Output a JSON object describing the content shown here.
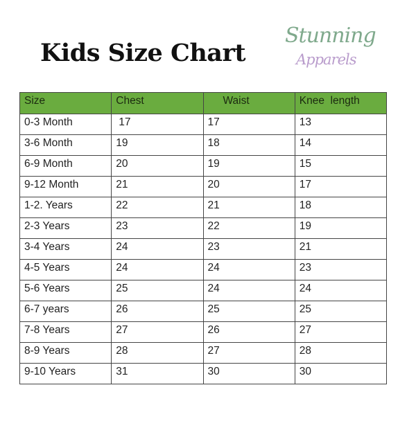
{
  "title": "Kids Size Chart",
  "logo": {
    "line1": "Stunning",
    "line2": "Apparels"
  },
  "colors": {
    "header_bg": "#6aac3f",
    "logo_green": "#7fa98c",
    "logo_purple": "#b99ccc"
  },
  "table": {
    "headers": [
      "Size",
      "Chest",
      "Waist",
      "Knee  length"
    ],
    "rows": [
      [
        "0-3 Month",
        "17",
        "17",
        "13"
      ],
      [
        "3-6 Month",
        "19",
        "18",
        "14"
      ],
      [
        "6-9 Month",
        "20",
        "19",
        "15"
      ],
      [
        "9-12 Month",
        "21",
        "20",
        "17"
      ],
      [
        "1-2. Years",
        "22",
        "21",
        "18"
      ],
      [
        "2-3 Years",
        "23",
        "22",
        "19"
      ],
      [
        "3-4 Years",
        "24",
        "23",
        "21"
      ],
      [
        "4-5 Years",
        "24",
        "24",
        "23"
      ],
      [
        "5-6 Years",
        "25",
        "24",
        "24"
      ],
      [
        "6-7 years",
        "26",
        "25",
        "25"
      ],
      [
        "7-8 Years",
        "27",
        "26",
        "27"
      ],
      [
        "8-9 Years",
        "28",
        "27",
        "28"
      ],
      [
        "9-10 Years",
        "31",
        "30",
        "30"
      ]
    ]
  }
}
